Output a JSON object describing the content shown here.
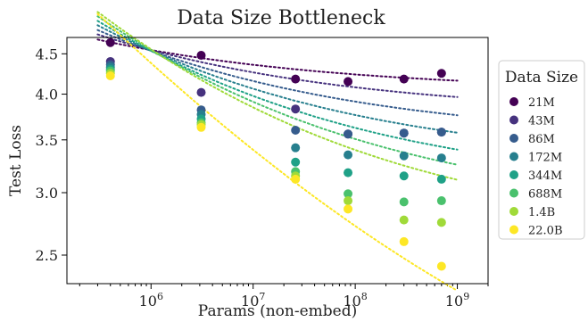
{
  "chart_data": {
    "type": "scatter",
    "title": "Data Size Bottleneck",
    "xlabel": "Params (non-embed)",
    "ylabel": "Test Loss",
    "xscale": "log",
    "yscale": "log",
    "xlim": [
      150000,
      2000000000
    ],
    "ylim": [
      2.3,
      4.72
    ],
    "x_ticks": [
      {
        "value": 1000000,
        "base": "10",
        "exp": "6"
      },
      {
        "value": 10000000,
        "base": "10",
        "exp": "7"
      },
      {
        "value": 100000000,
        "base": "10",
        "exp": "8"
      },
      {
        "value": 1000000000,
        "base": "10",
        "exp": "9"
      }
    ],
    "y_ticks": [
      {
        "value": 2.5,
        "label": "2.5"
      },
      {
        "value": 3.0,
        "label": "3.0"
      },
      {
        "value": 3.5,
        "label": "3.5"
      },
      {
        "value": 4.0,
        "label": "4.0"
      },
      {
        "value": 4.5,
        "label": "4.5"
      }
    ],
    "grid": false,
    "legend_title": "Data Size",
    "legend_placement": "outside-right",
    "fit_x_range": [
      300000,
      1000000000
    ],
    "x": [
      400000,
      3100000,
      26000000,
      85000000,
      300000000,
      700000000
    ],
    "series": [
      {
        "name": "21M",
        "color": "#440154",
        "values": [
          4.65,
          4.48,
          4.18,
          4.15,
          4.18,
          4.25
        ],
        "fit": {
          "L_inf": 4.03,
          "A": 0.52,
          "alpha": 0.2
        }
      },
      {
        "name": "43M",
        "color": "#46327e",
        "values": [
          4.4,
          4.02,
          3.83,
          3.56,
          3.57,
          3.58
        ],
        "fit": {
          "L_inf": 3.77,
          "A": 0.78,
          "alpha": 0.2
        }
      },
      {
        "name": "86M",
        "color": "#365c8d",
        "values": [
          4.36,
          3.82,
          3.6,
          3.56,
          3.57,
          3.58
        ],
        "fit": {
          "L_inf": 3.5,
          "A": 1.04,
          "alpha": 0.2
        }
      },
      {
        "name": "172M",
        "color": "#277f8e",
        "values": [
          4.33,
          3.77,
          3.42,
          3.35,
          3.34,
          3.32
        ],
        "fit": {
          "L_inf": 3.25,
          "A": 1.29,
          "alpha": 0.2
        }
      },
      {
        "name": "344M",
        "color": "#1fa187",
        "values": [
          4.3,
          3.72,
          3.28,
          3.18,
          3.15,
          3.12
        ],
        "fit": {
          "L_inf": 3.02,
          "A": 1.52,
          "alpha": 0.2
        }
      },
      {
        "name": "688M",
        "color": "#4ac16d",
        "values": [
          4.28,
          3.68,
          3.19,
          2.99,
          2.92,
          2.93
        ],
        "fit": {
          "L_inf": 2.82,
          "A": 1.73,
          "alpha": 0.2
        }
      },
      {
        "name": "1.4B",
        "color": "#a0da39",
        "values": [
          4.25,
          3.66,
          3.15,
          2.93,
          2.77,
          2.75
        ],
        "fit": {
          "L_inf": 2.63,
          "A": 1.93,
          "alpha": 0.2
        }
      },
      {
        "name": "22.0B",
        "color": "#fde725",
        "values": [
          4.22,
          3.63,
          3.12,
          2.86,
          2.6,
          2.42
        ],
        "fit": {
          "L_inf": 1.2,
          "A": 3.18,
          "alpha": 0.16
        }
      }
    ]
  }
}
